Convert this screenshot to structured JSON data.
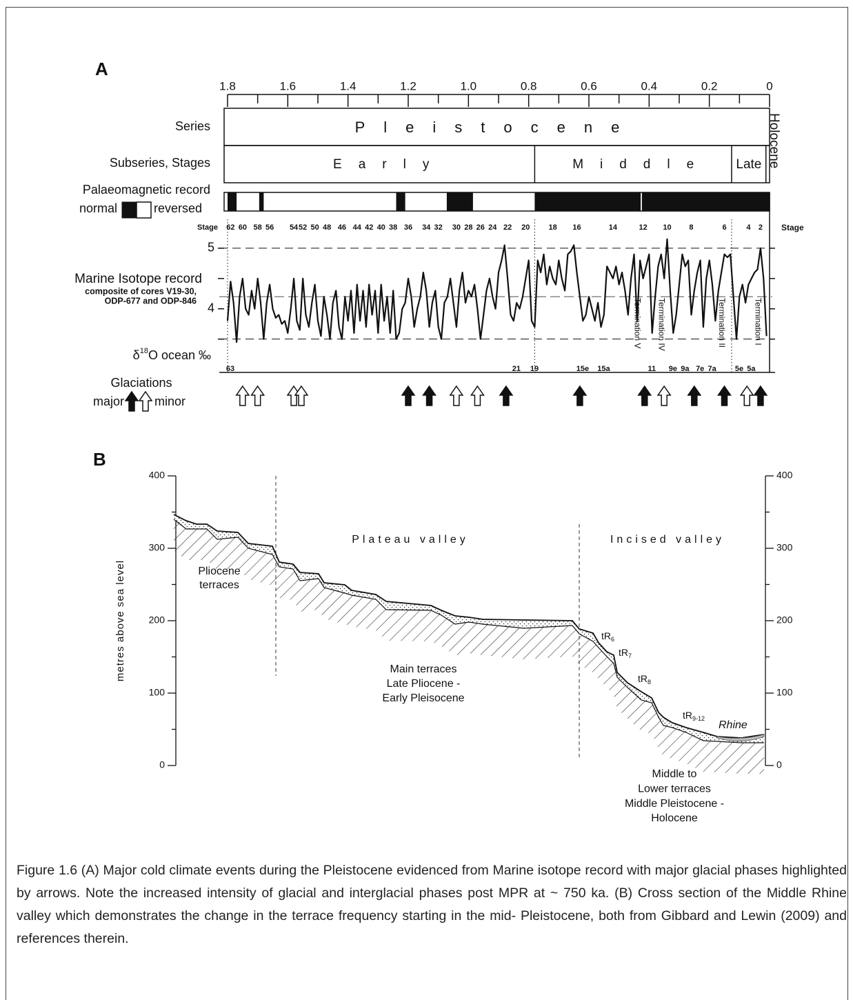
{
  "panel_a": {
    "label": "A",
    "age_axis": {
      "lim": [
        1.8,
        0
      ],
      "ticks": [
        1.8,
        1.6,
        1.4,
        1.2,
        {
          "value": 1,
          "label": "1.0"
        },
        0.8,
        0.6,
        0.4,
        0.2,
        0
      ],
      "minor_ticks": [
        1.7,
        1.5,
        1.3,
        1.1,
        0.9,
        0.7,
        0.5,
        0.3,
        0.1
      ]
    },
    "series_row": {
      "label": "Series",
      "name": "Pleistocene",
      "holocene": "Holocene"
    },
    "subseries_row": {
      "label": "Subseries, Stages",
      "units": [
        {
          "name": "Early",
          "start": 1.8,
          "end": 0.78
        },
        {
          "name": "Middle",
          "start": 0.78,
          "end": 0.126
        },
        {
          "name": "Late",
          "start": 0.126,
          "end": 0.012
        }
      ]
    },
    "palaeomagnetic": {
      "label": "Palaeomagnetic record",
      "normal_label": "normal",
      "reversed_label": "reversed",
      "normal_intervals": [
        [
          1.8,
          1.77
        ],
        [
          1.695,
          1.68
        ],
        [
          1.24,
          1.21
        ],
        [
          1.072,
          0.985
        ],
        [
          0.78,
          0.428
        ],
        [
          0.424,
          0
        ]
      ]
    },
    "stage_label": "Stage",
    "stages_top": {
      "labels": [
        62,
        60,
        58,
        56,
        54,
        52,
        50,
        48,
        46,
        44,
        42,
        40,
        38,
        36,
        34,
        32,
        30,
        28,
        26,
        24,
        22,
        20,
        18,
        16,
        14,
        12,
        10,
        8,
        6,
        4,
        2
      ],
      "ages": [
        1.79,
        1.75,
        1.7,
        1.66,
        1.58,
        1.55,
        1.51,
        1.47,
        1.42,
        1.37,
        1.33,
        1.29,
        1.25,
        1.2,
        1.14,
        1.1,
        1.04,
        1.0,
        0.96,
        0.92,
        0.87,
        0.81,
        0.72,
        0.64,
        0.52,
        0.42,
        0.34,
        0.26,
        0.15,
        0.07,
        0.03
      ]
    },
    "stages_bottom": {
      "labels": [
        63,
        21,
        19,
        "15e",
        "15a",
        11,
        "9e",
        "9a",
        "7e",
        "7a",
        "5e",
        "5a"
      ],
      "ages": [
        1.8,
        0.85,
        0.79,
        0.63,
        0.56,
        0.4,
        0.33,
        0.29,
        0.24,
        0.2,
        0.11,
        0.07
      ]
    },
    "isotope": {
      "title": "Marine Isotope record",
      "subtitle_lines": [
        "composite of cores V19-30,",
        "ODP-677 and ODP-846"
      ],
      "axis_label": {
        "pre": "δ",
        "sup": "18",
        "post": "O ocean ‰"
      },
      "ylim": [
        2.95,
        5.5
      ],
      "yticks": [
        4,
        5
      ],
      "minor_ticks": [
        3.5,
        4.5
      ],
      "reference_lines": [
        5,
        3.5
      ],
      "mean_line": 4.2,
      "ages": [
        1.8,
        1.79,
        1.78,
        1.77,
        1.76,
        1.75,
        1.74,
        1.73,
        1.72,
        1.71,
        1.7,
        1.69,
        1.68,
        1.67,
        1.66,
        1.65,
        1.64,
        1.63,
        1.62,
        1.61,
        1.6,
        1.59,
        1.58,
        1.57,
        1.56,
        1.55,
        1.54,
        1.53,
        1.52,
        1.51,
        1.5,
        1.49,
        1.48,
        1.47,
        1.46,
        1.45,
        1.44,
        1.43,
        1.42,
        1.41,
        1.4,
        1.39,
        1.38,
        1.37,
        1.36,
        1.35,
        1.34,
        1.33,
        1.32,
        1.31,
        1.3,
        1.29,
        1.28,
        1.27,
        1.26,
        1.25,
        1.24,
        1.23,
        1.22,
        1.21,
        1.2,
        1.19,
        1.18,
        1.17,
        1.16,
        1.15,
        1.14,
        1.13,
        1.12,
        1.11,
        1.1,
        1.09,
        1.08,
        1.07,
        1.06,
        1.05,
        1.04,
        1.03,
        1.02,
        1.01,
        1.0,
        0.99,
        0.98,
        0.97,
        0.96,
        0.95,
        0.94,
        0.93,
        0.92,
        0.91,
        0.9,
        0.89,
        0.88,
        0.87,
        0.86,
        0.85,
        0.84,
        0.83,
        0.82,
        0.81,
        0.8,
        0.79,
        0.78,
        0.77,
        0.76,
        0.75,
        0.74,
        0.73,
        0.72,
        0.71,
        0.7,
        0.69,
        0.68,
        0.67,
        0.66,
        0.65,
        0.64,
        0.63,
        0.62,
        0.61,
        0.6,
        0.59,
        0.58,
        0.57,
        0.56,
        0.55,
        0.54,
        0.53,
        0.52,
        0.51,
        0.5,
        0.49,
        0.48,
        0.47,
        0.46,
        0.45,
        0.44,
        0.43,
        0.42,
        0.41,
        0.4,
        0.39,
        0.38,
        0.37,
        0.36,
        0.35,
        0.34,
        0.33,
        0.32,
        0.31,
        0.3,
        0.29,
        0.28,
        0.27,
        0.26,
        0.25,
        0.24,
        0.23,
        0.22,
        0.21,
        0.2,
        0.19,
        0.18,
        0.17,
        0.16,
        0.15,
        0.14,
        0.13,
        0.12,
        0.11,
        0.1,
        0.09,
        0.08,
        0.07,
        0.06,
        0.05,
        0.04,
        0.03,
        0.02,
        0.01
      ],
      "values": [
        3.8,
        4.45,
        4.1,
        3.45,
        4.2,
        4.5,
        4.0,
        3.9,
        4.3,
        4.0,
        4.5,
        4.1,
        3.5,
        4.1,
        4.4,
        4.0,
        3.85,
        3.9,
        3.75,
        3.8,
        3.6,
        4.0,
        4.5,
        3.8,
        3.65,
        4.5,
        3.9,
        3.7,
        4.1,
        4.4,
        3.8,
        3.55,
        4.2,
        3.9,
        3.5,
        4.1,
        4.3,
        3.7,
        3.5,
        4.2,
        3.8,
        4.3,
        3.6,
        4.4,
        3.8,
        4.3,
        3.7,
        4.4,
        3.9,
        4.3,
        3.6,
        4.4,
        3.8,
        4.2,
        3.6,
        4.3,
        3.5,
        3.6,
        4.0,
        4.1,
        4.5,
        4.2,
        3.7,
        4.0,
        4.2,
        4.6,
        4.3,
        3.7,
        4.1,
        4.3,
        3.7,
        3.5,
        4.1,
        4.2,
        4.5,
        4.1,
        3.7,
        4.3,
        4.6,
        4.1,
        4.3,
        4.2,
        4.4,
        4.0,
        3.5,
        3.9,
        4.3,
        4.5,
        4.2,
        4.0,
        4.6,
        4.8,
        5.05,
        4.5,
        3.9,
        3.8,
        4.1,
        4.0,
        4.2,
        4.5,
        4.8,
        3.8,
        3.7,
        4.8,
        4.6,
        4.9,
        4.4,
        4.7,
        4.5,
        4.4,
        4.8,
        4.5,
        4.3,
        4.9,
        4.95,
        5.05,
        4.6,
        4.2,
        3.8,
        3.9,
        4.2,
        4.0,
        3.8,
        4.1,
        3.7,
        3.9,
        4.7,
        4.6,
        4.5,
        4.7,
        4.4,
        4.6,
        4.3,
        3.9,
        4.5,
        4.9,
        3.8,
        4.8,
        4.5,
        4.7,
        4.9,
        3.6,
        4.2,
        4.7,
        4.9,
        4.5,
        5.15,
        4.3,
        3.6,
        3.9,
        4.4,
        4.9,
        4.7,
        4.8,
        3.9,
        4.3,
        4.6,
        4.8,
        3.7,
        4.5,
        4.8,
        4.4,
        3.8,
        4.3,
        4.6,
        4.9,
        4.85,
        4.9,
        4.2,
        3.5,
        4.2,
        4.4,
        4.1,
        4.4,
        4.5,
        4.6,
        4.65,
        5.0,
        4.5,
        3.55
      ]
    },
    "terminations": {
      "labels": [
        "Termination V",
        "Termination IV",
        "Termination II",
        "Termination I"
      ],
      "ages": [
        0.44,
        0.36,
        0.16,
        0.04
      ]
    },
    "glaciations": {
      "label": "Glaciations",
      "major_label": "major",
      "minor_label": "minor",
      "major_ages": [
        1.2,
        1.13,
        0.875,
        0.63,
        0.415,
        0.25,
        0.15,
        0.03
      ],
      "minor_ages": [
        1.75,
        1.7,
        1.58,
        1.555,
        1.04,
        0.97,
        0.35,
        0.075
      ]
    }
  },
  "panel_b": {
    "label": "B",
    "y_label": "metres above sea level",
    "ylim": [
      0,
      400
    ],
    "yticks": [
      0,
      100,
      200,
      300,
      400
    ],
    "minor_ticks": [
      50,
      150,
      250,
      350
    ],
    "zones": [
      "Plateau valley",
      "Incised valley"
    ],
    "pliocene_label": [
      "Pliocene",
      "terraces"
    ],
    "main_label": [
      "Main terraces",
      "Late Pliocene -",
      "Early Pleisocene"
    ],
    "lower_label": [
      "Middle to",
      "Lower terraces",
      "Middle Pleistocene -",
      "Holocene"
    ],
    "terraces": [
      {
        "base": "tR",
        "sub": "6"
      },
      {
        "base": "tR",
        "sub": "7"
      },
      {
        "base": "tR",
        "sub": "8"
      },
      {
        "base": "tR",
        "sub": "9-12"
      }
    ],
    "river": "Rhine"
  },
  "caption": "Figure 1.6 (A) Major cold climate events during the Pleistocene evidenced from Marine isotope record with major glacial phases highlighted by arrows. Note the increased intensity of glacial and interglacial phases post MPR at ~ 750 ka. (B) Cross section of the Middle Rhine valley which demonstrates the change in the terrace frequency starting in the mid- Pleistocene, both from Gibbard and Lewin (2009) and references therein."
}
